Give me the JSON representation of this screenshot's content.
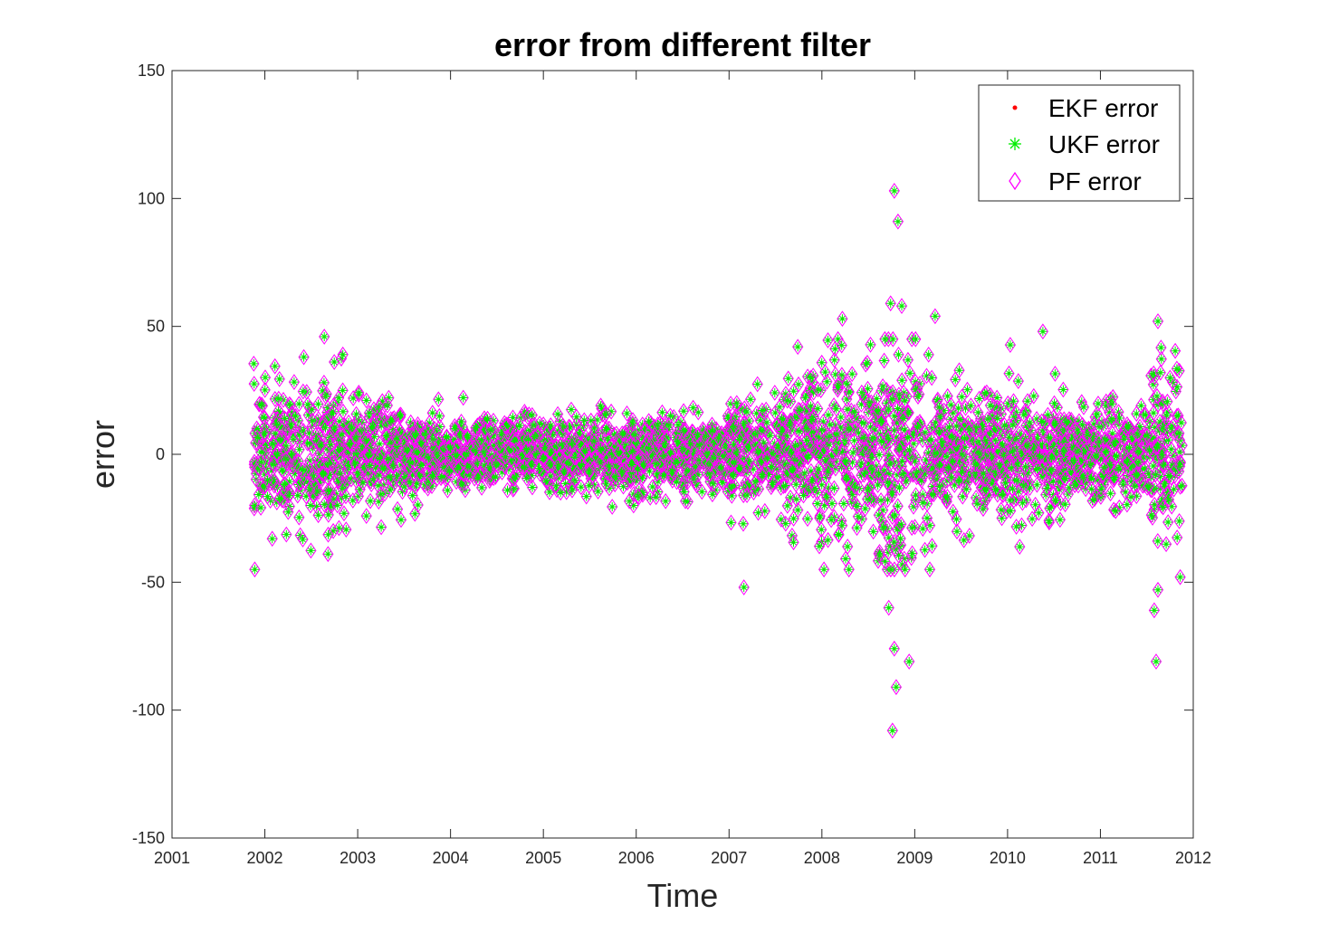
{
  "chart_data": {
    "type": "scatter",
    "title": "error from different filter",
    "xlabel": "Time",
    "ylabel": "error",
    "xlim": [
      2001,
      2012
    ],
    "ylim": [
      -150,
      150
    ],
    "xticks": [
      "2001",
      "2002",
      "2003",
      "2004",
      "2005",
      "2006",
      "2007",
      "2008",
      "2009",
      "2010",
      "2011",
      "2012"
    ],
    "yticks": [
      "-150",
      "-100",
      "-50",
      "0",
      "50",
      "100",
      "150"
    ],
    "grid": false,
    "legend_position": "top-right",
    "colors": {
      "EKF error": "#ff0000",
      "UKF error": "#00ee00",
      "PF error": "#ff00ff"
    },
    "series": [
      {
        "name": "EKF error",
        "marker": "dot"
      },
      {
        "name": "UKF error",
        "marker": "asterisk"
      },
      {
        "name": "PF error",
        "marker": "diamond"
      }
    ],
    "x_range": [
      2001.88,
      2011.88
    ],
    "notable_points": [
      {
        "x": 2008.78,
        "y": 103
      },
      {
        "x": 2008.82,
        "y": 91
      },
      {
        "x": 2008.74,
        "y": 59
      },
      {
        "x": 2008.86,
        "y": 58
      },
      {
        "x": 2009.22,
        "y": 54
      },
      {
        "x": 2008.22,
        "y": 53
      },
      {
        "x": 2011.62,
        "y": 52
      },
      {
        "x": 2010.38,
        "y": 48
      },
      {
        "x": 2002.64,
        "y": 46
      },
      {
        "x": 2002.84,
        "y": 39
      },
      {
        "x": 2002.42,
        "y": 38
      },
      {
        "x": 2007.74,
        "y": 42
      },
      {
        "x": 2007.16,
        "y": -52
      },
      {
        "x": 2002.68,
        "y": -39
      },
      {
        "x": 2002.08,
        "y": -33
      },
      {
        "x": 2011.62,
        "y": -53
      },
      {
        "x": 2011.58,
        "y": -61
      },
      {
        "x": 2008.72,
        "y": -60
      },
      {
        "x": 2008.78,
        "y": -76
      },
      {
        "x": 2008.8,
        "y": -91
      },
      {
        "x": 2008.94,
        "y": -81
      },
      {
        "x": 2011.6,
        "y": -81
      },
      {
        "x": 2008.76,
        "y": -108
      },
      {
        "x": 2011.86,
        "y": -48
      }
    ],
    "background_spread": [
      {
        "from": 2001.88,
        "to": 2002.9,
        "sd": 13
      },
      {
        "from": 2002.9,
        "to": 2003.5,
        "sd": 10
      },
      {
        "from": 2003.5,
        "to": 2007.0,
        "sd": 7
      },
      {
        "from": 2007.0,
        "to": 2007.6,
        "sd": 11
      },
      {
        "from": 2007.6,
        "to": 2008.6,
        "sd": 17
      },
      {
        "from": 2008.6,
        "to": 2009.2,
        "sd": 22
      },
      {
        "from": 2009.2,
        "to": 2010.6,
        "sd": 12
      },
      {
        "from": 2010.6,
        "to": 2011.5,
        "sd": 9
      },
      {
        "from": 2011.5,
        "to": 2011.88,
        "sd": 18
      }
    ]
  }
}
